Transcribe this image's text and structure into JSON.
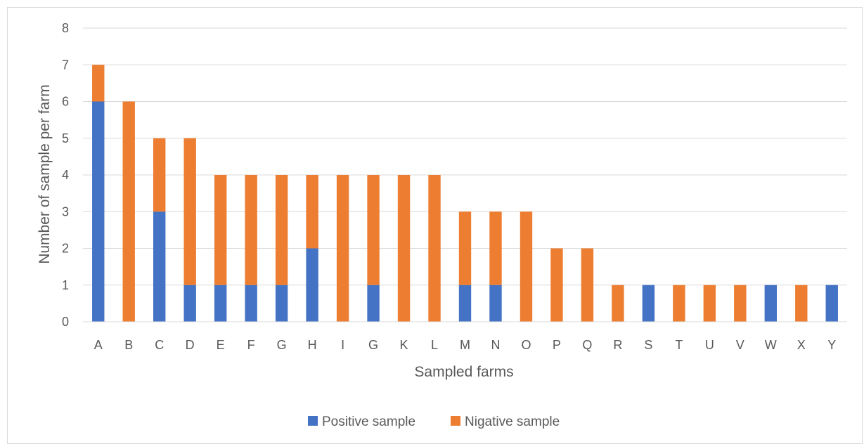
{
  "chart_data": {
    "type": "bar",
    "stacked": true,
    "categories": [
      "A",
      "B",
      "C",
      "D",
      "E",
      "F",
      "G",
      "H",
      "I",
      "G",
      "K",
      "L",
      "M",
      "N",
      "O",
      "P",
      "Q",
      "R",
      "S",
      "T",
      "U",
      "V",
      "W",
      "X",
      "Y"
    ],
    "series": [
      {
        "name": "Positive sample",
        "color": "#4472c4",
        "values": [
          6,
          0,
          3,
          1,
          1,
          1,
          1,
          2,
          0,
          1,
          0,
          0,
          1,
          1,
          0,
          0,
          0,
          0,
          1,
          0,
          0,
          0,
          1,
          0,
          1
        ]
      },
      {
        "name": "Nigative sample",
        "color": "#ed7d31",
        "values": [
          1,
          6,
          2,
          4,
          3,
          3,
          3,
          2,
          4,
          3,
          4,
          4,
          2,
          2,
          3,
          2,
          2,
          1,
          0,
          1,
          1,
          1,
          0,
          1,
          0
        ]
      }
    ],
    "xlabel": "Sampled farms",
    "ylabel": "Number of sample per farm",
    "ylim": [
      0,
      8
    ],
    "yticks": [
      "0",
      "1",
      "2",
      "3",
      "4",
      "5",
      "6",
      "7",
      "8"
    ],
    "grid": true,
    "legend_position": "bottom"
  }
}
